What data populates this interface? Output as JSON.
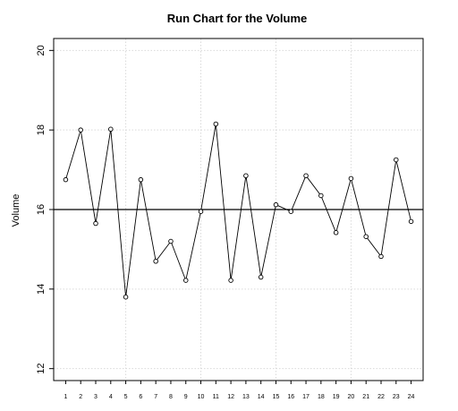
{
  "chart_data": {
    "type": "line",
    "title": "Run Chart for the Volume",
    "xlabel": "",
    "ylabel": "Volume",
    "x": [
      1,
      2,
      3,
      4,
      5,
      6,
      7,
      8,
      9,
      10,
      11,
      12,
      13,
      14,
      15,
      16,
      17,
      18,
      19,
      20,
      21,
      22,
      23,
      24
    ],
    "x_ticks": [
      "1",
      "2",
      "3",
      "4",
      "5",
      "6",
      "7",
      "8",
      "9",
      "10",
      "11",
      "12",
      "13",
      "14",
      "15",
      "16",
      "17",
      "18",
      "19",
      "20",
      "21",
      "22",
      "23",
      "24"
    ],
    "y_ticks": [
      "12",
      "14",
      "16",
      "18",
      "20"
    ],
    "y": [
      16.75,
      18.0,
      15.65,
      18.02,
      13.8,
      16.75,
      14.7,
      15.2,
      14.22,
      15.95,
      18.15,
      14.22,
      16.85,
      14.3,
      16.12,
      15.95,
      16.85,
      16.35,
      15.42,
      16.78,
      15.32,
      14.82,
      17.25,
      15.7
    ],
    "center_line": 16,
    "xlim": [
      0.2,
      24.8
    ],
    "ylim": [
      11.7,
      20.3
    ],
    "grid": true,
    "marker": "open-circle",
    "line_color": "#000000",
    "grid_color": "#d9d9d9"
  }
}
